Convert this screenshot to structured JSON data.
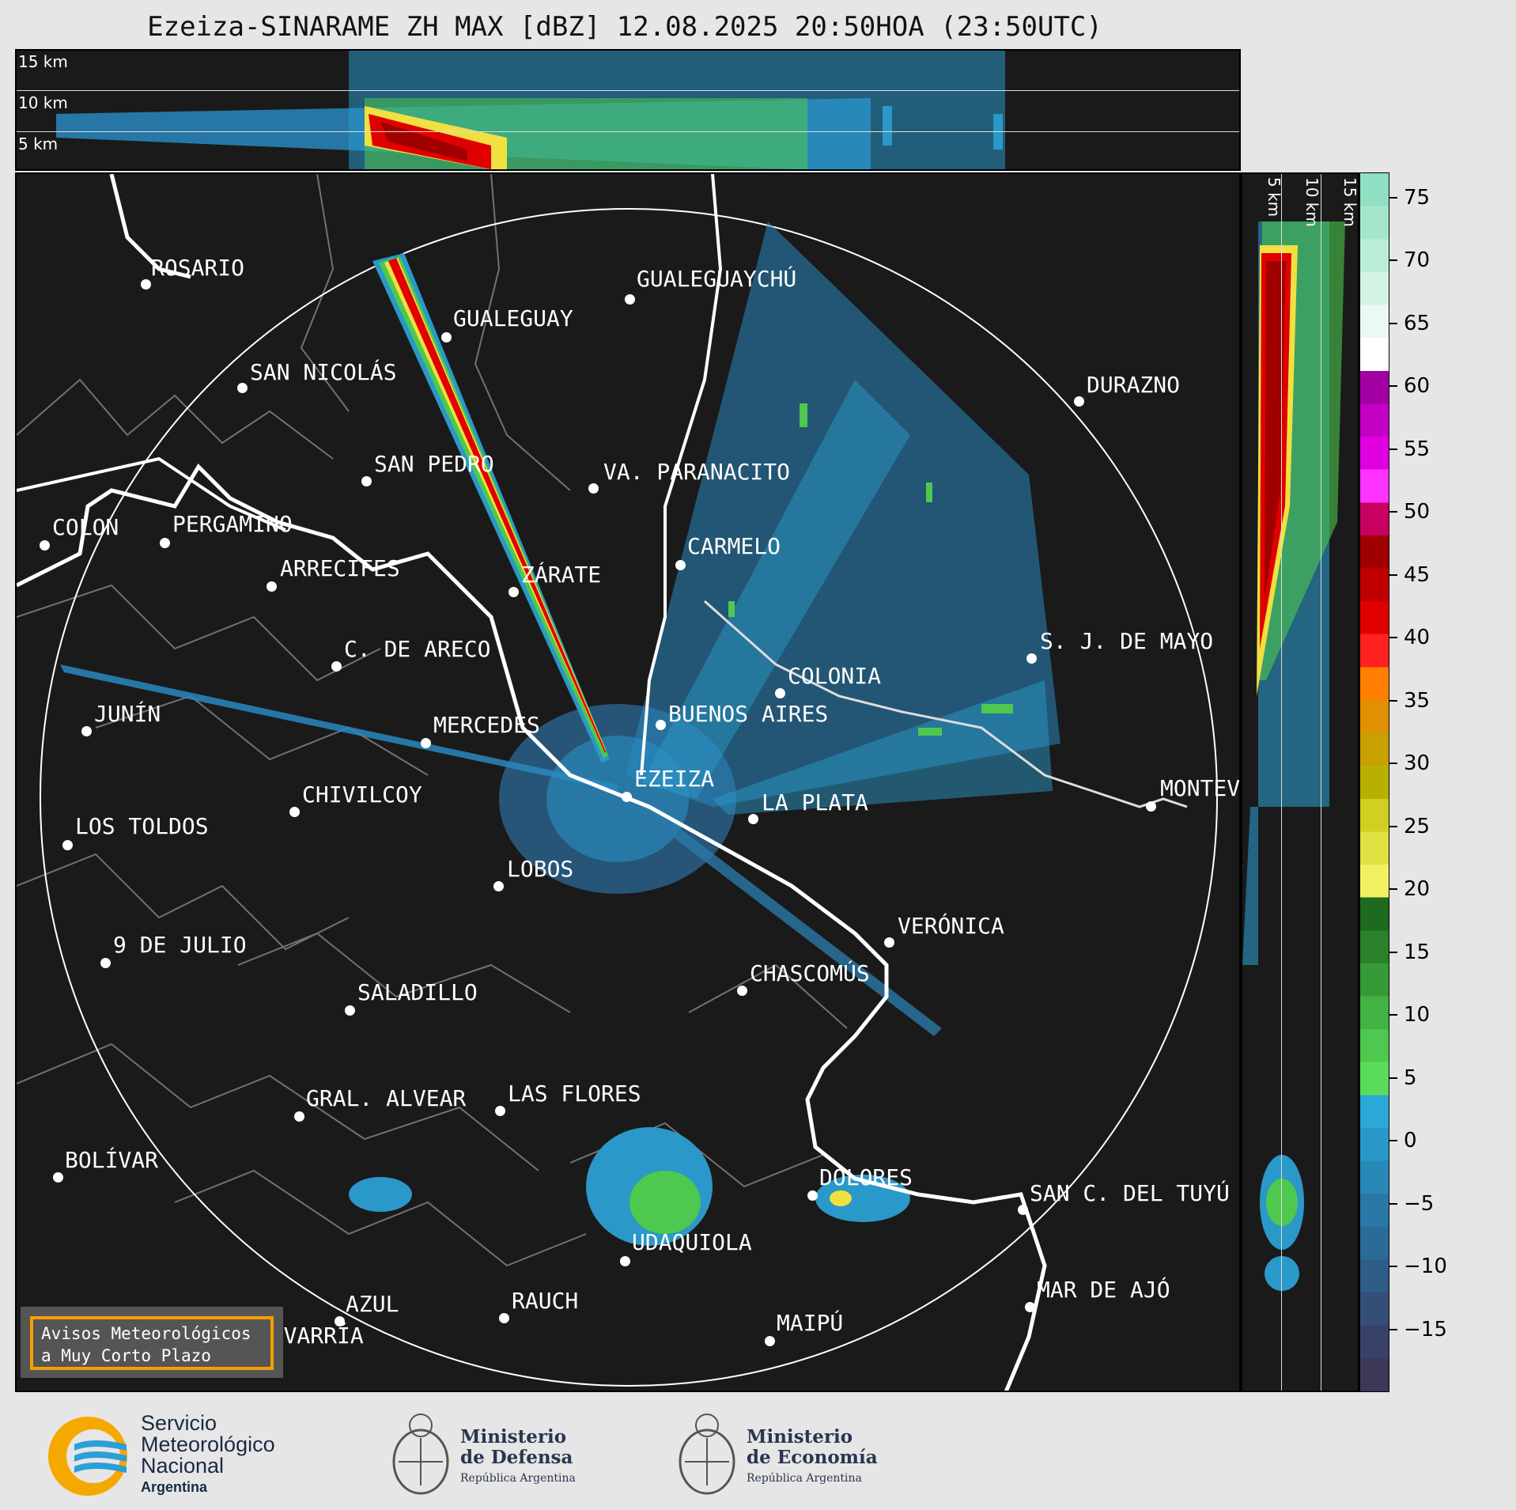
{
  "title": "Ezeiza-SINARAME ZH MAX [dBZ] 12.08.2025 20:50HOA (23:50UTC)",
  "height_labels": [
    "15 km",
    "10 km",
    "5 km"
  ],
  "side_labels": [
    "5 km",
    "10 km",
    "15 km"
  ],
  "colorbar": {
    "ticks": [
      "75",
      "70",
      "65",
      "60",
      "55",
      "50",
      "45",
      "40",
      "35",
      "30",
      "25",
      "20",
      "15",
      "10",
      "5",
      "0",
      "−5",
      "−10",
      "−15"
    ],
    "colors": [
      "#8fe0c2",
      "#a4e6cc",
      "#bbecd8",
      "#d3f3e5",
      "#eafaf2",
      "#ffffff",
      "#a300a3",
      "#c400c4",
      "#e000e0",
      "#ff33ff",
      "#c80060",
      "#a00000",
      "#c00000",
      "#e00000",
      "#ff2020",
      "#ff8000",
      "#e09000",
      "#c8a000",
      "#b8b000",
      "#d0d020",
      "#e0e040",
      "#f0f060",
      "#1e6a1e",
      "#2a822a",
      "#369a36",
      "#42b242",
      "#4ec84e",
      "#5adc5a",
      "#2aa8d8",
      "#2898c8",
      "#2888b8",
      "#2a78a8",
      "#2c6a98",
      "#305c88",
      "#344e78",
      "#384268",
      "#3c3858"
    ]
  },
  "cities": [
    {
      "name": "ROSARIO"
    },
    {
      "name": "GUALEGUAYCHÚ"
    },
    {
      "name": "GUALEGUAY"
    },
    {
      "name": "SAN NICOLÁS"
    },
    {
      "name": "DURAZNO"
    },
    {
      "name": "SAN PEDRO"
    },
    {
      "name": "VA. PARANACITO"
    },
    {
      "name": "COLON"
    },
    {
      "name": "PERGAMINO"
    },
    {
      "name": "CARMELO"
    },
    {
      "name": "ARRECIFES"
    },
    {
      "name": "ZÁRATE"
    },
    {
      "name": "S. J. DE MAYO"
    },
    {
      "name": "C. DE ARECO"
    },
    {
      "name": "COLONIA"
    },
    {
      "name": "JUNÍN"
    },
    {
      "name": "BUENOS AIRES"
    },
    {
      "name": "MERCEDES"
    },
    {
      "name": "MONTEV"
    },
    {
      "name": "EZEIZA"
    },
    {
      "name": "CHIVILCOY"
    },
    {
      "name": "LA PLATA"
    },
    {
      "name": "LOS TOLDOS"
    },
    {
      "name": "LOBOS"
    },
    {
      "name": "VERÓNICA"
    },
    {
      "name": "9 DE JULIO"
    },
    {
      "name": "CHASCOMÚS"
    },
    {
      "name": "SALADILLO"
    },
    {
      "name": "GRAL. ALVEAR"
    },
    {
      "name": "LAS FLORES"
    },
    {
      "name": "BOLÍVAR"
    },
    {
      "name": "DOLORES"
    },
    {
      "name": "SAN C. DEL TUYÚ"
    },
    {
      "name": "UDAQUIOLA"
    },
    {
      "name": "AZUL"
    },
    {
      "name": "RAUCH"
    },
    {
      "name": "MAR DE AJÓ"
    },
    {
      "name": "MAIPÚ"
    },
    {
      "name": "OLAVARRÍA"
    }
  ],
  "warning": {
    "line1": "Avisos Meteorológicos",
    "line2": "a Muy Corto Plazo"
  },
  "logos": {
    "smn": {
      "line1": "Servicio",
      "line2": "Meteorológico",
      "line3": "Nacional",
      "line4": "Argentina"
    },
    "defensa": {
      "line1": "Ministerio",
      "line2": "de Defensa",
      "line3": "República Argentina"
    },
    "economia": {
      "line1": "Ministerio",
      "line2": "de Economía",
      "line3": "República Argentina"
    }
  },
  "colors": {
    "background": "#1a1a1a",
    "warning_border": "#f5a000",
    "smn_orange": "#f5a800",
    "smn_blue": "#2a9fd8"
  }
}
